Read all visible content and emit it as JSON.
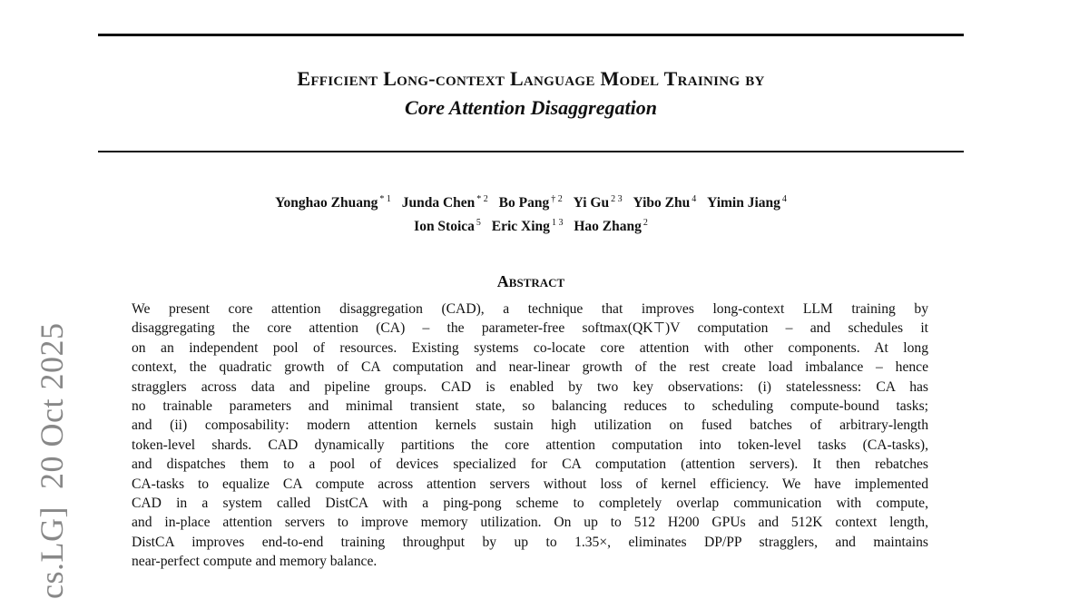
{
  "title": {
    "line1": "Efficient Long-context Language Model Training by",
    "line2": "Core Attention Disaggregation"
  },
  "authors": [
    {
      "name": "Yonghao Zhuang",
      "sup": "* 1"
    },
    {
      "name": "Junda Chen",
      "sup": "* 2"
    },
    {
      "name": "Bo Pang",
      "sup": "† 2"
    },
    {
      "name": "Yi Gu",
      "sup": "2 3"
    },
    {
      "name": "Yibo Zhu",
      "sup": "4"
    },
    {
      "name": "Yimin Jiang",
      "sup": "4"
    },
    {
      "name": "Ion Stoica",
      "sup": "5"
    },
    {
      "name": "Eric Xing",
      "sup": "1 3"
    },
    {
      "name": "Hao Zhang",
      "sup": "2"
    }
  ],
  "abstract": {
    "heading": "Abstract",
    "lines": [
      "We present core attention disaggregation (CAD), a technique that improves long-context LLM training by",
      "disaggregating the core attention (CA) – the parameter-free softmax(QK⊤)V computation – and schedules it",
      "on an independent pool of resources. Existing systems co-locate core attention with other components. At long",
      "context, the quadratic growth of CA computation and near-linear growth of the rest create load imbalance – hence",
      "stragglers across data and pipeline groups. CAD is enabled by two key observations: (i) statelessness: CA has",
      "no trainable parameters and minimal transient state, so balancing reduces to scheduling compute-bound tasks;",
      "and (ii) composability: modern attention kernels sustain high utilization on fused batches of arbitrary-length",
      "token-level shards. CAD dynamically partitions the core attention computation into token-level tasks (CA-tasks),",
      "and dispatches them to a pool of devices specialized for CA computation (attention servers). It then rebatches",
      "CA-tasks to equalize CA compute across attention servers without loss of kernel efficiency. We have implemented",
      "CAD in a system called DistCA with a ping-pong scheme to completely overlap communication with compute,",
      "and in-place attention servers to improve memory utilization. On up to 512 H200 GPUs and 512K context length,",
      "DistCA improves end-to-end training throughput by up to 1.35×, eliminates DP/PP stragglers, and maintains",
      "near-perfect compute and memory balance."
    ]
  },
  "arxiv_stamp": "cs.LG]  20 Oct 2025"
}
